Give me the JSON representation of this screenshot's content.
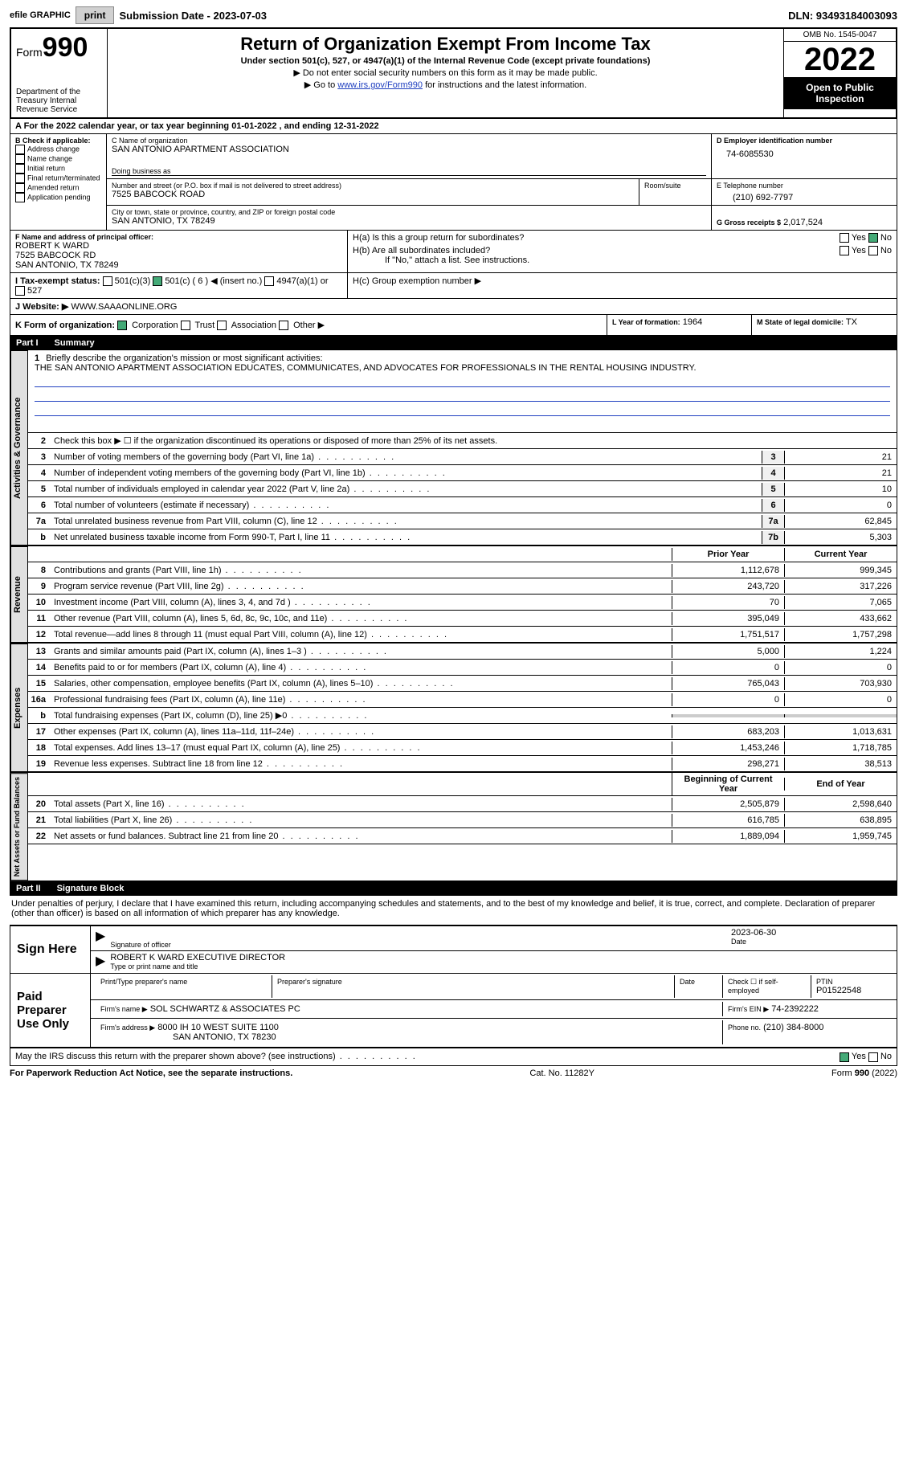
{
  "topbar": {
    "efile_label": "efile GRAPHIC",
    "print_btn": "print",
    "submission_label": "Submission Date - 2023-07-03",
    "dln": "DLN: 93493184003093"
  },
  "header": {
    "form_word": "Form",
    "form_num": "990",
    "dept": "Department of the Treasury Internal Revenue Service",
    "title": "Return of Organization Exempt From Income Tax",
    "sub": "Under section 501(c), 527, or 4947(a)(1) of the Internal Revenue Code (except private foundations)",
    "note1": "▶ Do not enter social security numbers on this form as it may be made public.",
    "note2_pre": "▶ Go to ",
    "note2_link": "www.irs.gov/Form990",
    "note2_post": " for instructions and the latest information.",
    "omb": "OMB No. 1545-0047",
    "year": "2022",
    "open": "Open to Public Inspection"
  },
  "A": {
    "text": "A For the 2022 calendar year, or tax year beginning 01-01-2022   , and ending 12-31-2022"
  },
  "B": {
    "label": "B Check if applicable:",
    "opts": [
      "Address change",
      "Name change",
      "Initial return",
      "Final return/terminated",
      "Amended return",
      "Application pending"
    ]
  },
  "C": {
    "name_label": "C Name of organization",
    "name": "SAN ANTONIO APARTMENT ASSOCIATION",
    "dba_label": "Doing business as",
    "street_label": "Number and street (or P.O. box if mail is not delivered to street address)",
    "room_label": "Room/suite",
    "street": "7525 BABCOCK ROAD",
    "city_label": "City or town, state or province, country, and ZIP or foreign postal code",
    "city": "SAN ANTONIO, TX  78249"
  },
  "D": {
    "label": "D Employer identification number",
    "val": "74-6085530"
  },
  "E": {
    "label": "E Telephone number",
    "val": "(210) 692-7797"
  },
  "G": {
    "label": "G Gross receipts $",
    "val": "2,017,524"
  },
  "F": {
    "label": "F  Name and address of principal officer:",
    "name": "ROBERT K WARD",
    "addr1": "7525 BABCOCK RD",
    "addr2": "SAN ANTONIO, TX  78249"
  },
  "H": {
    "a": "H(a)  Is this a group return for subordinates?",
    "b": "H(b)  Are all subordinates included?",
    "b_note": "If \"No,\" attach a list. See instructions.",
    "c": "H(c)  Group exemption number ▶",
    "yes": "Yes",
    "no": "No"
  },
  "I": {
    "label": "I   Tax-exempt status:",
    "c3": "501(c)(3)",
    "c": "501(c) (",
    "c_num": "6",
    "c_post": ") ◀ (insert no.)",
    "a1": "4947(a)(1) or",
    "s527": "527"
  },
  "J": {
    "label": "J   Website: ▶",
    "val": "WWW.SAAAONLINE.ORG"
  },
  "K": {
    "label": "K Form of organization:",
    "opts": [
      "Corporation",
      "Trust",
      "Association",
      "Other ▶"
    ]
  },
  "L": {
    "label": "L Year of formation:",
    "val": "1964"
  },
  "M": {
    "label": "M State of legal domicile:",
    "val": "TX"
  },
  "part1": {
    "num": "Part I",
    "title": "Summary"
  },
  "summary": {
    "l1_label": "Briefly describe the organization's mission or most significant activities:",
    "l1_text": "THE SAN ANTONIO APARTMENT ASSOCIATION EDUCATES, COMMUNICATES, AND ADVOCATES FOR PROFESSIONALS IN THE RENTAL HOUSING INDUSTRY.",
    "l2": "Check this box ▶ ☐  if the organization discontinued its operations or disposed of more than 25% of its net assets.",
    "lines_gov": [
      {
        "n": "3",
        "d": "Number of voting members of the governing body (Part VI, line 1a)",
        "box": "3",
        "v": "21"
      },
      {
        "n": "4",
        "d": "Number of independent voting members of the governing body (Part VI, line 1b)",
        "box": "4",
        "v": "21"
      },
      {
        "n": "5",
        "d": "Total number of individuals employed in calendar year 2022 (Part V, line 2a)",
        "box": "5",
        "v": "10"
      },
      {
        "n": "6",
        "d": "Total number of volunteers (estimate if necessary)",
        "box": "6",
        "v": "0"
      },
      {
        "n": "7a",
        "d": "Total unrelated business revenue from Part VIII, column (C), line 12",
        "box": "7a",
        "v": "62,845"
      },
      {
        "n": "b",
        "d": "Net unrelated business taxable income from Form 990-T, Part I, line 11",
        "box": "7b",
        "v": "5,303"
      }
    ],
    "prior_hdr": "Prior Year",
    "curr_hdr": "Current Year",
    "revenue": [
      {
        "n": "8",
        "d": "Contributions and grants (Part VIII, line 1h)",
        "p": "1,112,678",
        "c": "999,345"
      },
      {
        "n": "9",
        "d": "Program service revenue (Part VIII, line 2g)",
        "p": "243,720",
        "c": "317,226"
      },
      {
        "n": "10",
        "d": "Investment income (Part VIII, column (A), lines 3, 4, and 7d )",
        "p": "70",
        "c": "7,065"
      },
      {
        "n": "11",
        "d": "Other revenue (Part VIII, column (A), lines 5, 6d, 8c, 9c, 10c, and 11e)",
        "p": "395,049",
        "c": "433,662"
      },
      {
        "n": "12",
        "d": "Total revenue—add lines 8 through 11 (must equal Part VIII, column (A), line 12)",
        "p": "1,751,517",
        "c": "1,757,298"
      }
    ],
    "expenses": [
      {
        "n": "13",
        "d": "Grants and similar amounts paid (Part IX, column (A), lines 1–3 )",
        "p": "5,000",
        "c": "1,224"
      },
      {
        "n": "14",
        "d": "Benefits paid to or for members (Part IX, column (A), line 4)",
        "p": "0",
        "c": "0"
      },
      {
        "n": "15",
        "d": "Salaries, other compensation, employee benefits (Part IX, column (A), lines 5–10)",
        "p": "765,043",
        "c": "703,930"
      },
      {
        "n": "16a",
        "d": "Professional fundraising fees (Part IX, column (A), line 11e)",
        "p": "0",
        "c": "0"
      },
      {
        "n": "b",
        "d": "Total fundraising expenses (Part IX, column (D), line 25) ▶0",
        "p": "",
        "c": "",
        "gray": true
      },
      {
        "n": "17",
        "d": "Other expenses (Part IX, column (A), lines 11a–11d, 11f–24e)",
        "p": "683,203",
        "c": "1,013,631"
      },
      {
        "n": "18",
        "d": "Total expenses. Add lines 13–17 (must equal Part IX, column (A), line 25)",
        "p": "1,453,246",
        "c": "1,718,785"
      },
      {
        "n": "19",
        "d": "Revenue less expenses. Subtract line 18 from line 12",
        "p": "298,271",
        "c": "38,513"
      }
    ],
    "boy_hdr": "Beginning of Current Year",
    "eoy_hdr": "End of Year",
    "netassets": [
      {
        "n": "20",
        "d": "Total assets (Part X, line 16)",
        "p": "2,505,879",
        "c": "2,598,640"
      },
      {
        "n": "21",
        "d": "Total liabilities (Part X, line 26)",
        "p": "616,785",
        "c": "638,895"
      },
      {
        "n": "22",
        "d": "Net assets or fund balances. Subtract line 21 from line 20",
        "p": "1,889,094",
        "c": "1,959,745"
      }
    ],
    "vtabs": {
      "gov": "Activities & Governance",
      "rev": "Revenue",
      "exp": "Expenses",
      "net": "Net Assets or Fund Balances"
    }
  },
  "part2": {
    "num": "Part II",
    "title": "Signature Block"
  },
  "sig": {
    "perjury": "Under penalties of perjury, I declare that I have examined this return, including accompanying schedules and statements, and to the best of my knowledge and belief, it is true, correct, and complete. Declaration of preparer (other than officer) is based on all information of which preparer has any knowledge.",
    "sign_here": "Sign Here",
    "sig_officer": "Signature of officer",
    "date": "Date",
    "sig_date": "2023-06-30",
    "name_title": "ROBERT K WARD  EXECUTIVE DIRECTOR",
    "type_name": "Type or print name and title",
    "paid": "Paid Preparer Use Only",
    "prep_name_label": "Print/Type preparer's name",
    "prep_sig_label": "Preparer's signature",
    "check_self": "Check ☐ if self-employed",
    "ptin_label": "PTIN",
    "ptin": "P01522548",
    "firm_name_label": "Firm's name    ▶",
    "firm_name": "SOL SCHWARTZ & ASSOCIATES PC",
    "firm_ein_label": "Firm's EIN ▶",
    "firm_ein": "74-2392222",
    "firm_addr_label": "Firm's address ▶",
    "firm_addr1": "8000 IH 10 WEST SUITE 1100",
    "firm_addr2": "SAN ANTONIO, TX  78230",
    "phone_label": "Phone no.",
    "phone": "(210) 384-8000",
    "discuss": "May the IRS discuss this return with the preparer shown above? (see instructions)"
  },
  "footer": {
    "left": "For Paperwork Reduction Act Notice, see the separate instructions.",
    "mid": "Cat. No. 11282Y",
    "right": "Form 990 (2022)"
  }
}
